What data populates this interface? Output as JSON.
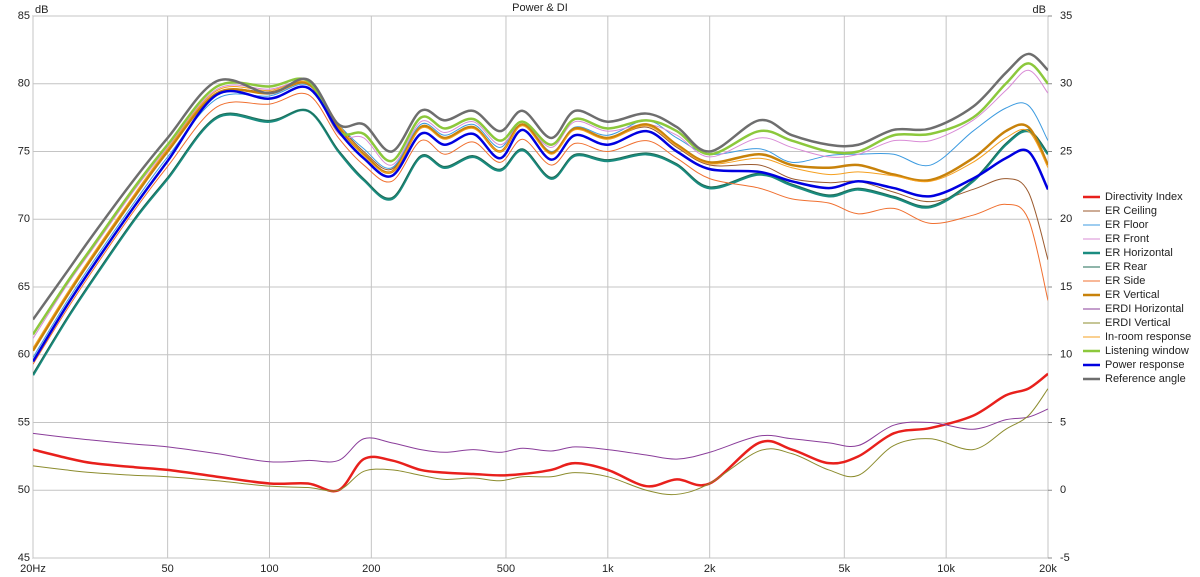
{
  "chart_data": {
    "type": "line",
    "title": "Power & DI",
    "y_label": "dB",
    "y2_label": "dB",
    "x": [
      20,
      25,
      30,
      40,
      50,
      70,
      100,
      130,
      160,
      190,
      230,
      280,
      330,
      400,
      480,
      560,
      680,
      800,
      1000,
      1300,
      1600,
      2000,
      2800,
      3500,
      4500,
      5500,
      7000,
      9000,
      12000,
      15000,
      17500,
      20000
    ],
    "xlim": [
      20,
      20000
    ],
    "log_x": true,
    "xticks": [
      {
        "value": 20,
        "label": "20Hz"
      },
      50,
      100,
      200,
      500,
      {
        "value": 1000,
        "label": "1k"
      },
      {
        "value": 2000,
        "label": "2k"
      },
      {
        "value": 5000,
        "label": "5k"
      },
      {
        "value": 10000,
        "label": "10k"
      },
      {
        "value": 20000,
        "label": "20k"
      }
    ],
    "ylim": [
      45,
      85
    ],
    "yticks": [
      45,
      50,
      55,
      60,
      65,
      70,
      75,
      80,
      85
    ],
    "y2lim": [
      -5,
      35
    ],
    "y2ticks": [
      -5,
      0,
      5,
      10,
      15,
      20,
      25,
      30,
      35
    ],
    "grid": true,
    "legend": "right",
    "series": [
      {
        "name": "Directivity Index",
        "color": "#e8201c",
        "line_width": 2.5,
        "axis": "y2",
        "values": [
          3,
          2.4,
          2,
          1.7,
          1.5,
          1,
          0.5,
          0.5,
          0,
          2.3,
          2.2,
          1.5,
          1.3,
          1.2,
          1.1,
          1.2,
          1.5,
          2,
          1.5,
          0.3,
          0.8,
          0.5,
          3.5,
          3,
          2,
          2.5,
          4.2,
          4.6,
          5.5,
          7,
          7.5,
          8.6
        ]
      },
      {
        "name": "ER Ceiling",
        "color": "#9b5a2e",
        "line_width": 1,
        "values": [
          60.3,
          64.2,
          67.2,
          71.7,
          75,
          79.3,
          79.4,
          80,
          77,
          75,
          73.7,
          76.8,
          76,
          76.8,
          75,
          77,
          74.9,
          76.7,
          76,
          76.8,
          75.3,
          74,
          74,
          73,
          72.7,
          72.8,
          72,
          71.3,
          72.2,
          73,
          72,
          67
        ]
      },
      {
        "name": "ER Floor",
        "color": "#3d9be0",
        "line_width": 1,
        "values": [
          59.8,
          63.8,
          66.8,
          71.3,
          74.6,
          78.9,
          79.1,
          79.9,
          77,
          75.2,
          73.8,
          77,
          76.2,
          77,
          75.3,
          77.2,
          75,
          76.8,
          76.2,
          77.3,
          76,
          74.8,
          75.2,
          74.2,
          74.7,
          74.8,
          74.8,
          74,
          76.5,
          78.2,
          78.4,
          75.8
        ]
      },
      {
        "name": "ER Front",
        "color": "#d98cd6",
        "line_width": 1,
        "values": [
          61.2,
          65,
          67.8,
          72.2,
          75.3,
          79.6,
          79.6,
          80,
          76.3,
          76,
          74,
          77.2,
          76.4,
          77.2,
          75.5,
          77,
          75.3,
          77.2,
          76.5,
          77,
          76.2,
          74.6,
          76,
          75.3,
          74.6,
          74.8,
          75.8,
          75.8,
          77.3,
          79.5,
          81,
          79.3
        ]
      },
      {
        "name": "ER Horizontal",
        "color": "#1a8c80",
        "line_width": 2.5,
        "values": [
          58.5,
          62.5,
          65.5,
          70,
          73,
          77.5,
          77.2,
          78,
          75,
          72.9,
          71.5,
          74.6,
          73.8,
          74.6,
          73.6,
          75.1,
          73,
          74.7,
          74.3,
          74.8,
          74,
          72.3,
          73.3,
          72.5,
          71.7,
          72.2,
          71.6,
          70.9,
          72.8,
          75.5,
          76.5,
          74.8
        ]
      },
      {
        "name": "ER Rear",
        "color": "#1f6b55",
        "line_width": 1,
        "values": [
          58.6,
          62.6,
          65.6,
          70.1,
          73.1,
          77.6,
          77.3,
          78,
          75.1,
          73,
          71.6,
          74.7,
          73.9,
          74.7,
          73.7,
          75.2,
          73.1,
          74.8,
          74.4,
          74.9,
          74.1,
          72.4,
          73.4,
          72.6,
          71.8,
          72.3,
          71.7,
          71,
          72.9,
          75.6,
          76.6,
          74.9
        ]
      },
      {
        "name": "ER Side",
        "color": "#f07030",
        "line_width": 1,
        "values": [
          59.3,
          63.2,
          66.2,
          70.7,
          73.9,
          78.3,
          78.5,
          79.2,
          76,
          74,
          72.8,
          75.8,
          74.8,
          75.7,
          74.2,
          75.9,
          74,
          75.6,
          75,
          75.8,
          74.5,
          73,
          72.3,
          71.5,
          71.2,
          70.4,
          70.8,
          69.7,
          70.3,
          71.1,
          70,
          64
        ]
      },
      {
        "name": "ER Vertical",
        "color": "#c8820a",
        "line_width": 2.5,
        "values": [
          60.3,
          64.2,
          67.2,
          71.7,
          75,
          79.3,
          79.3,
          80,
          76.8,
          74.8,
          73.5,
          76.8,
          76,
          76.8,
          75,
          77,
          74.9,
          76.7,
          76,
          77,
          75.5,
          74.2,
          74.8,
          74,
          73.8,
          74,
          73.3,
          72.9,
          74.5,
          76.5,
          76.8,
          74
        ]
      },
      {
        "name": "ERDI Horizontal",
        "color": "#8a3d9a",
        "line_width": 1,
        "axis": "y2",
        "values": [
          4.2,
          3.9,
          3.7,
          3.4,
          3.2,
          2.7,
          2.1,
          2.2,
          2.2,
          3.8,
          3.5,
          3,
          2.8,
          3,
          2.8,
          3.1,
          2.9,
          3.2,
          3,
          2.6,
          2.3,
          2.8,
          4,
          3.8,
          3.5,
          3.3,
          4.8,
          5,
          4.5,
          5.2,
          5.4,
          6
        ]
      },
      {
        "name": "ERDI Vertical",
        "color": "#8c8c2e",
        "line_width": 1,
        "axis": "y2",
        "values": [
          1.8,
          1.5,
          1.3,
          1.1,
          1,
          0.7,
          0.3,
          0.2,
          0,
          1.4,
          1.5,
          1.1,
          0.8,
          0.9,
          0.7,
          1,
          1,
          1.3,
          1,
          0,
          -0.3,
          0.5,
          2.9,
          2.7,
          1.5,
          1.1,
          3.3,
          3.8,
          3,
          4.5,
          5.5,
          7.5
        ]
      },
      {
        "name": "In-room response",
        "color": "#f5a020",
        "line_width": 1,
        "values": [
          60.5,
          64.4,
          67.4,
          71.9,
          75.2,
          79.5,
          79.5,
          80.1,
          77,
          74.7,
          73.5,
          76.7,
          75.9,
          76.7,
          75,
          76.9,
          74.8,
          76.6,
          75.9,
          76.9,
          75.4,
          74.1,
          74.5,
          73.8,
          73.3,
          73.5,
          73.2,
          72.8,
          74.2,
          76,
          76.5,
          73.8
        ]
      },
      {
        "name": "Listening window",
        "color": "#8cc83c",
        "line_width": 2.5,
        "values": [
          61.5,
          65.2,
          68,
          72.4,
          75.5,
          79.8,
          79.8,
          80.2,
          76.5,
          76.3,
          74.3,
          77.5,
          76.7,
          77.4,
          75.8,
          77.2,
          75.5,
          77.4,
          76.7,
          77.3,
          76.5,
          74.8,
          76.5,
          75.8,
          75,
          75,
          76.2,
          76.3,
          77.5,
          80,
          81.5,
          80
        ]
      },
      {
        "name": "Power response",
        "color": "#0000e0",
        "line_width": 2.5,
        "values": [
          59.5,
          63.5,
          66.5,
          71,
          74.3,
          79.2,
          78.9,
          79.7,
          76.5,
          74.5,
          73.2,
          76.3,
          75.5,
          76.3,
          74.5,
          76.6,
          74.4,
          76.2,
          75.5,
          76.5,
          75,
          73.7,
          73.5,
          72.8,
          72.3,
          72.8,
          72.3,
          71.7,
          73,
          74.5,
          75,
          72.2
        ]
      },
      {
        "name": "Reference angle",
        "color": "#6e6e6e",
        "line_width": 2.5,
        "values": [
          62.6,
          66,
          68.8,
          73,
          76,
          80.2,
          79.3,
          80.3,
          77,
          77,
          75,
          78,
          77.3,
          78,
          76.5,
          78,
          76,
          78,
          77.2,
          77.8,
          76.8,
          75,
          77.3,
          76.2,
          75.5,
          75.5,
          76.6,
          76.7,
          78.3,
          80.8,
          82.2,
          81
        ]
      }
    ]
  }
}
